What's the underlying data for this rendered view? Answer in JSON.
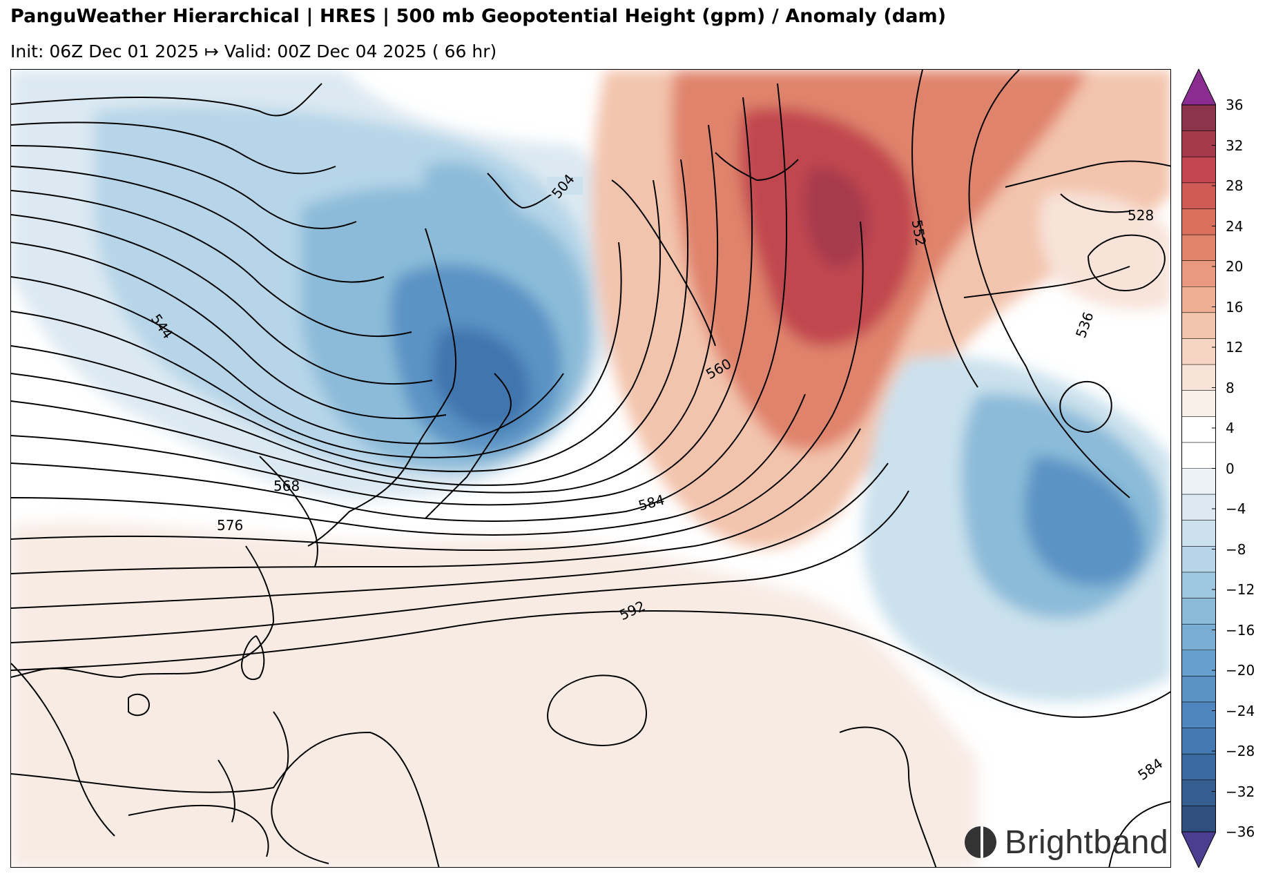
{
  "header": {
    "title": "PanguWeather Hierarchical | HRES | 500 mb Geopotential Height (gpm) / Anomaly (dam)",
    "subtitle": "Init: 06Z Dec 01 2025 ↦ Valid: 00Z Dec 04 2025 ( 66 hr)"
  },
  "map": {
    "contour_labels": [
      "504",
      "544",
      "552",
      "528",
      "536",
      "560",
      "568",
      "576",
      "584",
      "592",
      "584"
    ],
    "colors": {
      "land_outline": "#000000",
      "contour": "#000000",
      "border": "#000000"
    }
  },
  "colorbar": {
    "ticks": [
      "36",
      "32",
      "28",
      "24",
      "20",
      "16",
      "12",
      "8",
      "4",
      "0",
      "−4",
      "−8",
      "−12",
      "−16",
      "−20",
      "−24",
      "−28",
      "−32",
      "−36"
    ],
    "over_color": "#8b2c91",
    "under_color": "#4b3d8f",
    "bands": [
      "#8c3449",
      "#a53a4d",
      "#c1464f",
      "#cf5b57",
      "#d96f5c",
      "#e0836c",
      "#e89980",
      "#efaf95",
      "#f3c4ad",
      "#f6d5c5",
      "#f8e3d9",
      "#faf0ea",
      "#ffffff",
      "#ffffff",
      "#ecf3f8",
      "#dce9f2",
      "#cbe1ed",
      "#b6d5e8",
      "#9fc8e0",
      "#8bbbd9",
      "#79aed2",
      "#67a0cc",
      "#5a93c4",
      "#4e86bd",
      "#4479b1",
      "#3b6aa1",
      "#355d8f",
      "#2f4f7f"
    ]
  },
  "brand": {
    "name": "Brightband"
  }
}
